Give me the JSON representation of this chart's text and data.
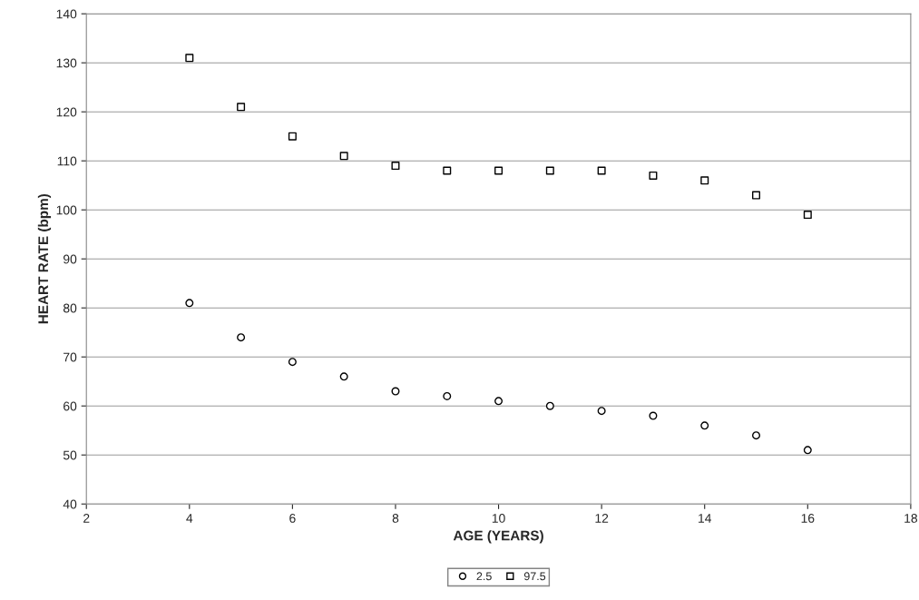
{
  "chart_data": {
    "type": "scatter",
    "xlabel": "AGE (YEARS)",
    "ylabel": "HEART RATE (bpm)",
    "x": [
      4,
      5,
      6,
      7,
      8,
      9,
      10,
      11,
      12,
      13,
      14,
      15,
      16
    ],
    "series": [
      {
        "name": "2.5",
        "color": "#000000",
        "marker": "circle",
        "values": [
          81,
          74,
          69,
          66,
          63,
          62,
          61,
          60,
          59,
          58,
          56,
          54,
          51
        ]
      },
      {
        "name": "97.5",
        "color": "#000000",
        "marker": "square",
        "values": [
          131,
          121,
          115,
          111,
          109,
          108,
          108,
          108,
          108,
          107,
          106,
          103,
          99
        ]
      }
    ],
    "xlim": [
      2,
      18
    ],
    "xticks": [
      2,
      4,
      6,
      8,
      10,
      12,
      14,
      16,
      18
    ],
    "ylim": [
      40,
      140
    ],
    "yticks": [
      40,
      50,
      60,
      70,
      80,
      90,
      100,
      110,
      120,
      130,
      140
    ],
    "grid": "y",
    "legend": "bottom"
  }
}
